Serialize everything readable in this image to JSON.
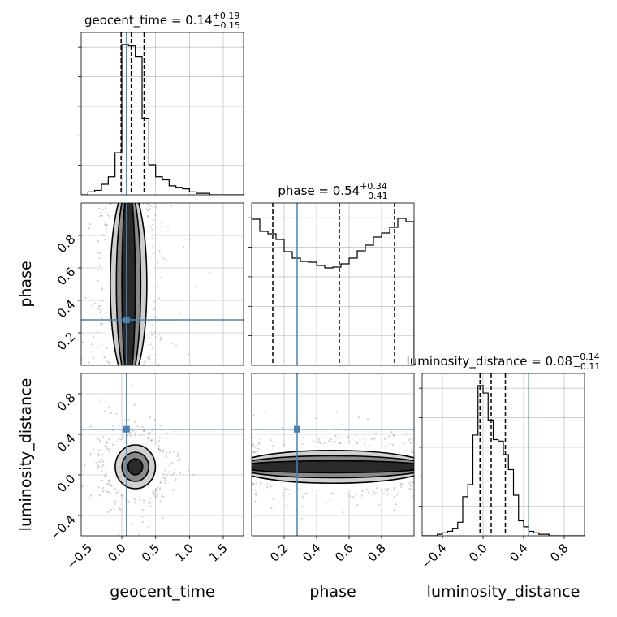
{
  "chart_data": {
    "type": "corner",
    "parameters": [
      "geocent_time",
      "phase",
      "luminosity_distance"
    ],
    "truth": {
      "geocent_time": 0.07,
      "phase": 0.28,
      "luminosity_distance": 0.45
    },
    "accent_color": "#4682b4",
    "grid": true,
    "panels": [
      {
        "id": "hist-geocent_time",
        "type": "histogram",
        "title": {
          "base": "geocent_time = 0.14",
          "plus": "+0.19",
          "minus": "−0.15"
        },
        "quantile_lines": [
          -0.01,
          0.14,
          0.33
        ],
        "bin_edges": [
          -0.6,
          -0.5,
          -0.4,
          -0.3,
          -0.2,
          -0.1,
          0.0,
          0.1,
          0.2,
          0.3,
          0.4,
          0.5,
          0.6,
          0.7,
          0.8,
          0.9,
          1.0,
          1.1,
          1.2,
          1.3,
          1.4,
          1.5,
          1.6,
          1.7,
          1.8
        ],
        "counts": [
          0,
          2,
          3,
          7,
          12,
          28,
          100,
          99,
          92,
          51,
          20,
          12,
          10,
          6,
          5,
          4,
          2,
          1,
          1,
          0,
          0,
          0,
          0,
          0
        ],
        "xlim": [
          -0.6,
          1.8
        ],
        "x_ticks": [
          -0.5,
          0.0,
          0.5,
          1.0,
          1.5
        ]
      },
      {
        "id": "hist-phase",
        "type": "histogram",
        "title": {
          "base": "phase = 0.54",
          "plus": "+0.34",
          "minus": "−0.41"
        },
        "quantile_lines": [
          0.13,
          0.54,
          0.88
        ],
        "bin_edges": [
          0.0,
          0.05,
          0.1,
          0.15,
          0.2,
          0.25,
          0.3,
          0.35,
          0.4,
          0.45,
          0.5,
          0.55,
          0.6,
          0.65,
          0.7,
          0.75,
          0.8,
          0.85,
          0.9,
          0.95,
          1.0
        ],
        "counts": [
          180,
          165,
          162,
          155,
          140,
          132,
          128,
          127,
          123,
          120,
          121,
          125,
          132,
          141,
          148,
          158,
          163,
          170,
          181,
          177
        ],
        "xlim": [
          0.0,
          1.0
        ],
        "ylim": [
          0,
          200
        ],
        "x_ticks": [
          0.2,
          0.4,
          0.6,
          0.8
        ]
      },
      {
        "id": "hist-luminosity_distance",
        "type": "histogram",
        "title": {
          "base": "luminosity_distance = 0.08",
          "plus": "+0.14",
          "minus": "−0.11"
        },
        "quantile_lines": [
          -0.03,
          0.08,
          0.22
        ],
        "bin_edges": [
          -0.6,
          -0.55,
          -0.5,
          -0.45,
          -0.4,
          -0.35,
          -0.3,
          -0.25,
          -0.2,
          -0.15,
          -0.1,
          -0.05,
          0.0,
          0.05,
          0.1,
          0.15,
          0.2,
          0.25,
          0.3,
          0.35,
          0.4,
          0.45,
          0.5,
          0.55,
          0.6,
          0.65,
          0.7,
          0.75,
          0.8,
          0.85,
          0.9,
          0.95,
          1.0
        ],
        "counts": [
          0,
          0,
          0,
          1,
          2,
          3,
          5,
          9,
          26,
          34,
          67,
          100,
          95,
          77,
          64,
          63,
          54,
          44,
          27,
          10,
          6,
          3,
          2,
          1,
          1,
          0,
          0,
          0,
          0,
          0,
          0,
          0
        ],
        "xlim": [
          -0.6,
          1.0
        ],
        "x_ticks": [
          -0.4,
          0.0,
          0.4,
          0.8
        ]
      },
      {
        "id": "scatter-geocent_time-phase",
        "type": "2d-density",
        "x": "geocent_time",
        "y": "phase",
        "xlim": [
          -0.6,
          1.8
        ],
        "ylim": [
          0.0,
          1.0
        ],
        "y_ticks": [
          0.2,
          0.4,
          0.6,
          0.8
        ],
        "x_center": 0.1,
        "x_sd": 0.2,
        "y_center": 0.5,
        "y_sd": 0.3
      },
      {
        "id": "scatter-geocent_time-luminosity_distance",
        "type": "2d-density",
        "x": "geocent_time",
        "y": "luminosity_distance",
        "xlim": [
          -0.6,
          1.8
        ],
        "ylim": [
          -0.6,
          1.0
        ],
        "y_ticks": [
          -0.4,
          0.0,
          0.4,
          0.8
        ],
        "x_center": 0.2,
        "x_sd": 0.22,
        "y_center": 0.08,
        "y_sd": 0.16
      },
      {
        "id": "scatter-phase-luminosity_distance",
        "type": "2d-density",
        "x": "phase",
        "y": "luminosity_distance",
        "xlim": [
          0.0,
          1.0
        ],
        "ylim": [
          -0.6,
          1.0
        ],
        "x_center": 0.5,
        "x_sd": 0.3,
        "y_center": 0.08,
        "y_sd": 0.12
      }
    ],
    "axis_labels": {
      "x": [
        "geocent_time",
        "phase",
        "luminosity_distance"
      ],
      "y": [
        "phase",
        "luminosity_distance"
      ]
    }
  }
}
